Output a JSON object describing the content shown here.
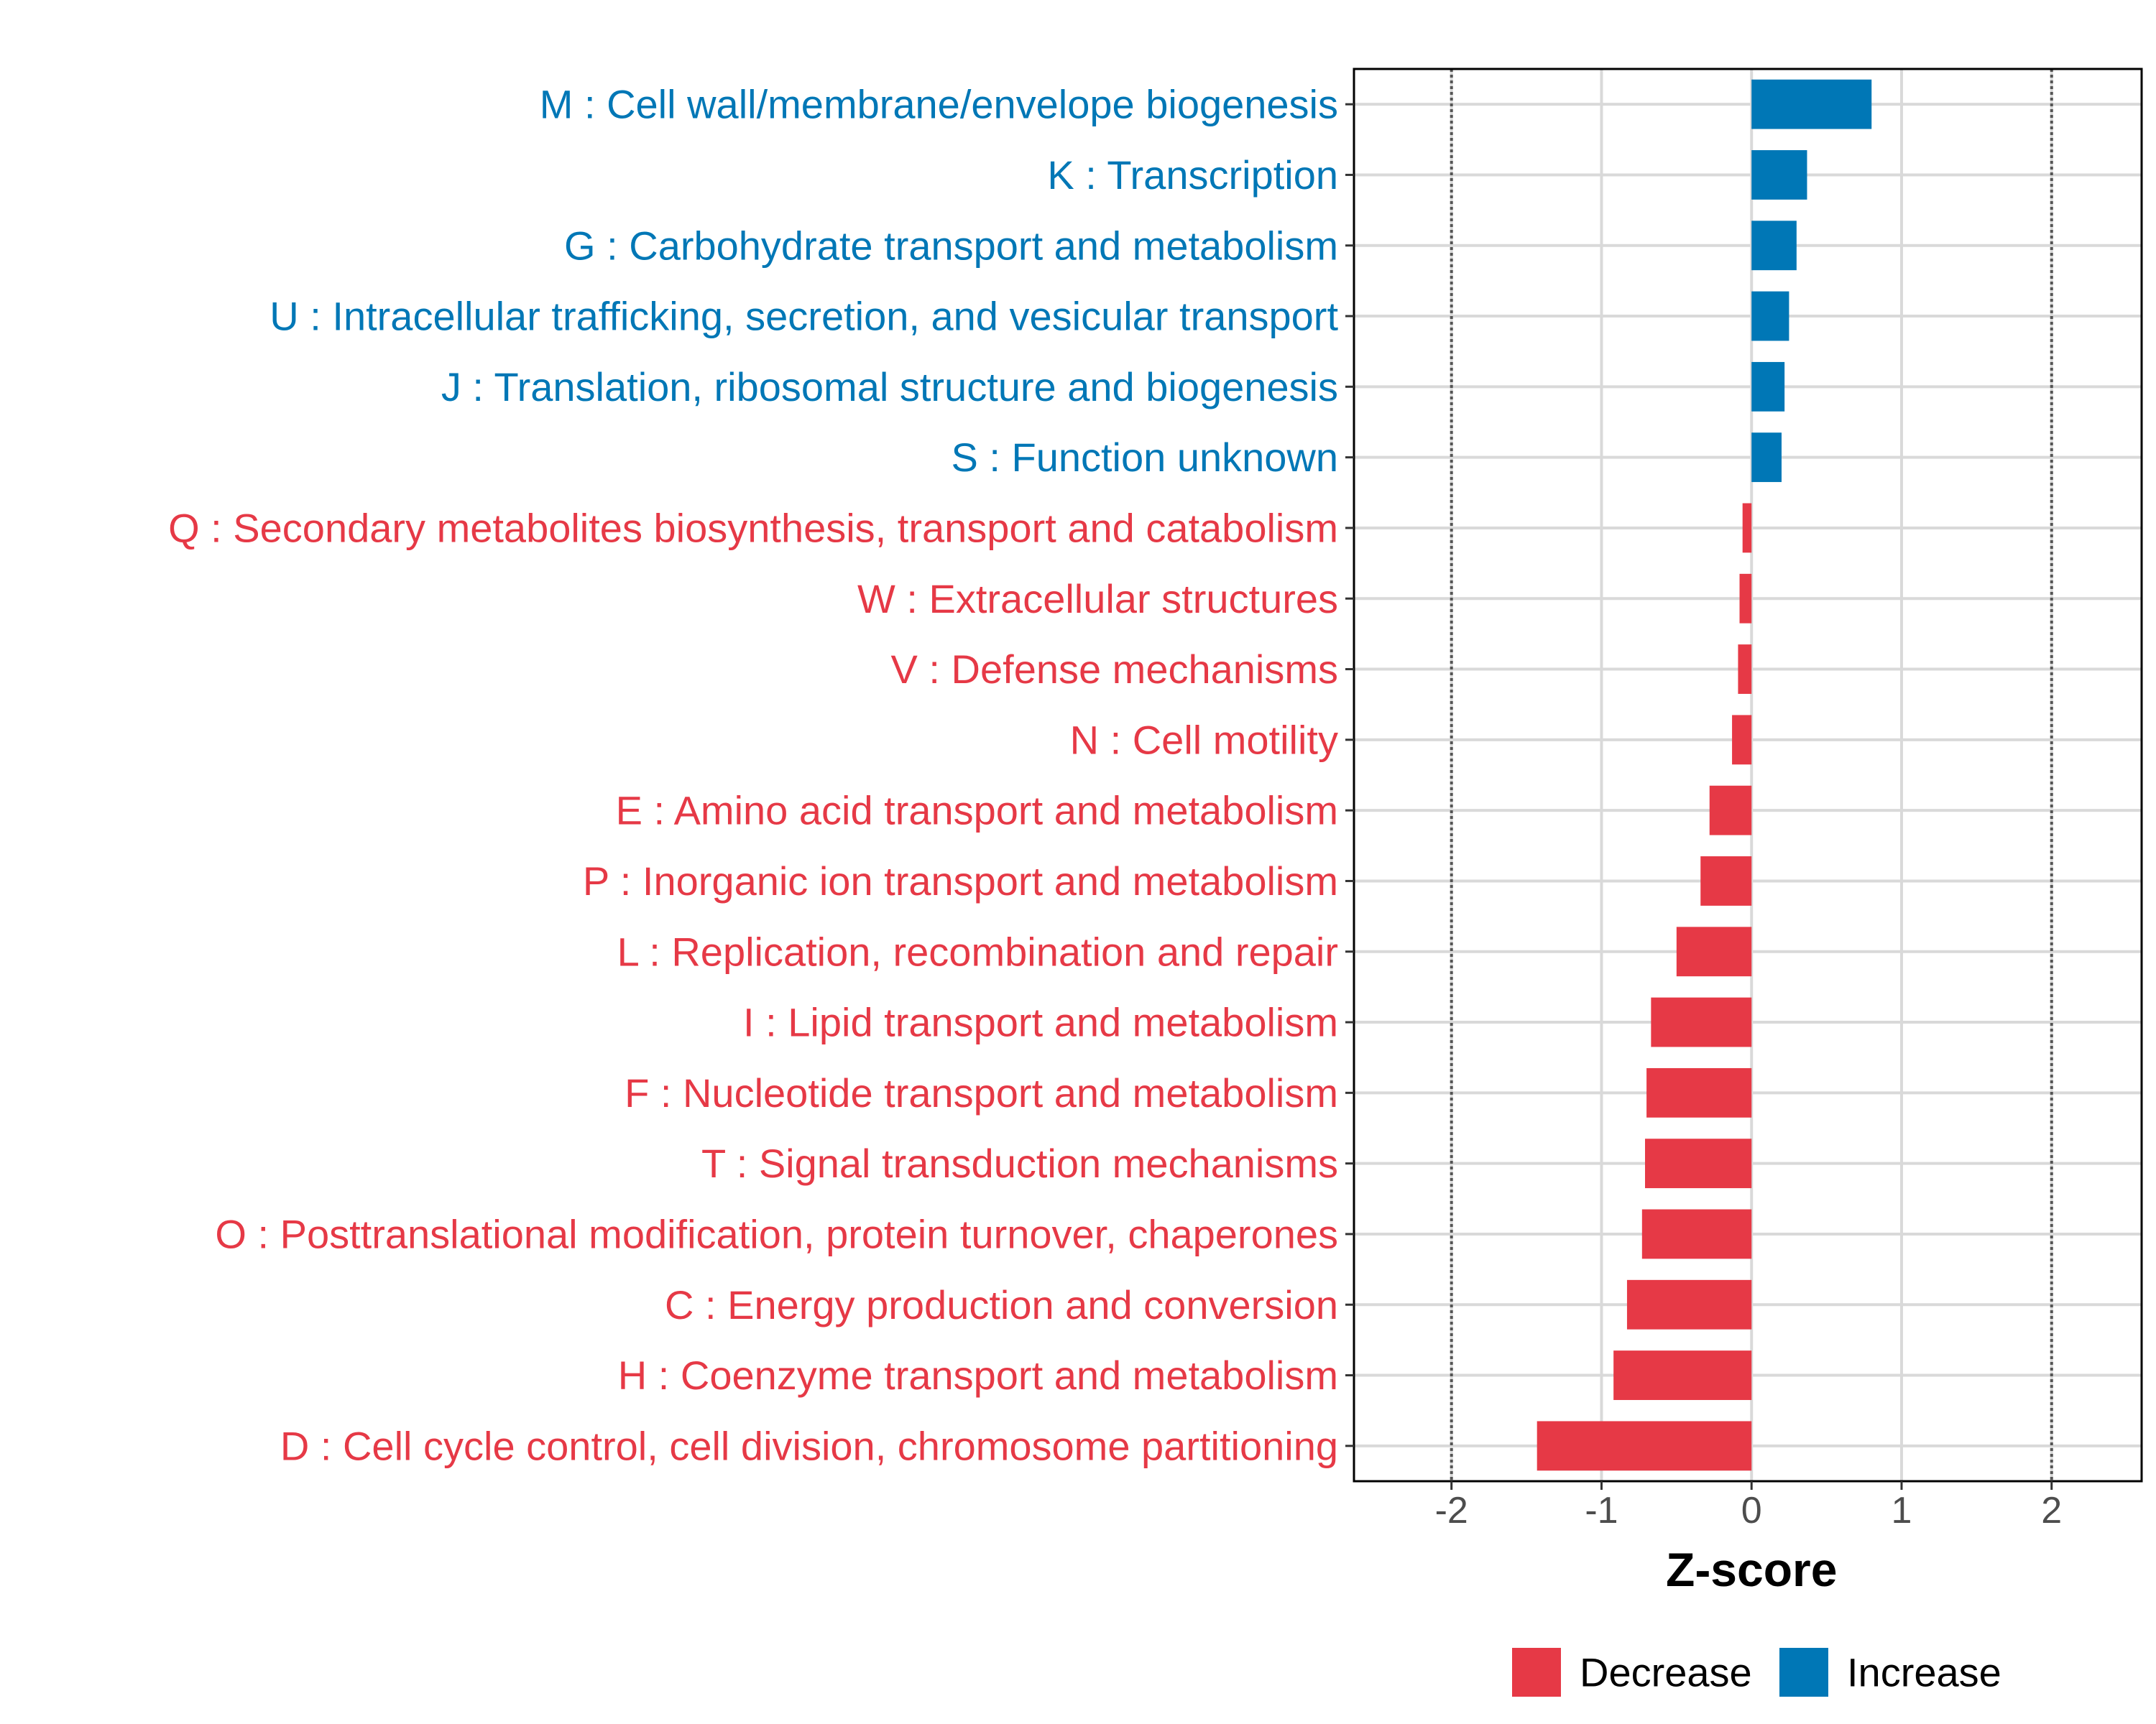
{
  "chart_data": {
    "type": "bar",
    "orientation": "horizontal",
    "title": "",
    "xlabel": "Z-score",
    "ylabel": "",
    "xlim": [
      -2.65,
      2.6
    ],
    "xticks": [
      -2,
      -1,
      0,
      1,
      2
    ],
    "xtick_labels": [
      "-2",
      "-1",
      "0",
      "1",
      "2"
    ],
    "reference_lines": [
      -2,
      2
    ],
    "grid": true,
    "legend_position": "bottom",
    "colors": {
      "Decrease": "#E63946",
      "Increase": "#0077B6"
    },
    "categories": [
      "M : Cell wall/membrane/envelope biogenesis",
      "K : Transcription",
      "G : Carbohydrate transport and metabolism",
      "U : Intracellular trafficking, secretion, and vesicular transport",
      "J : Translation, ribosomal structure and biogenesis",
      "S : Function unknown",
      "Q : Secondary metabolites biosynthesis, transport and catabolism",
      "W : Extracellular structures",
      "V : Defense mechanisms",
      "N : Cell motility",
      "E : Amino acid transport and metabolism",
      "P : Inorganic ion transport and metabolism",
      "L : Replication, recombination and repair",
      "I : Lipid transport and metabolism",
      "F : Nucleotide transport and metabolism",
      "T : Signal transduction mechanisms",
      "O : Posttranslational modification, protein turnover, chaperones",
      "C : Energy production and conversion",
      "H : Coenzyme transport and metabolism",
      "D : Cell cycle control, cell division, chromosome partitioning"
    ],
    "values": [
      0.8,
      0.37,
      0.3,
      0.25,
      0.22,
      0.2,
      -0.06,
      -0.08,
      -0.09,
      -0.13,
      -0.28,
      -0.34,
      -0.5,
      -0.67,
      -0.7,
      -0.71,
      -0.73,
      -0.83,
      -0.92,
      -1.43
    ],
    "groups": [
      "Increase",
      "Increase",
      "Increase",
      "Increase",
      "Increase",
      "Increase",
      "Decrease",
      "Decrease",
      "Decrease",
      "Decrease",
      "Decrease",
      "Decrease",
      "Decrease",
      "Decrease",
      "Decrease",
      "Decrease",
      "Decrease",
      "Decrease",
      "Decrease",
      "Decrease"
    ],
    "legend": [
      {
        "label": "Decrease",
        "color": "#E63946"
      },
      {
        "label": "Increase",
        "color": "#0077B6"
      }
    ]
  }
}
